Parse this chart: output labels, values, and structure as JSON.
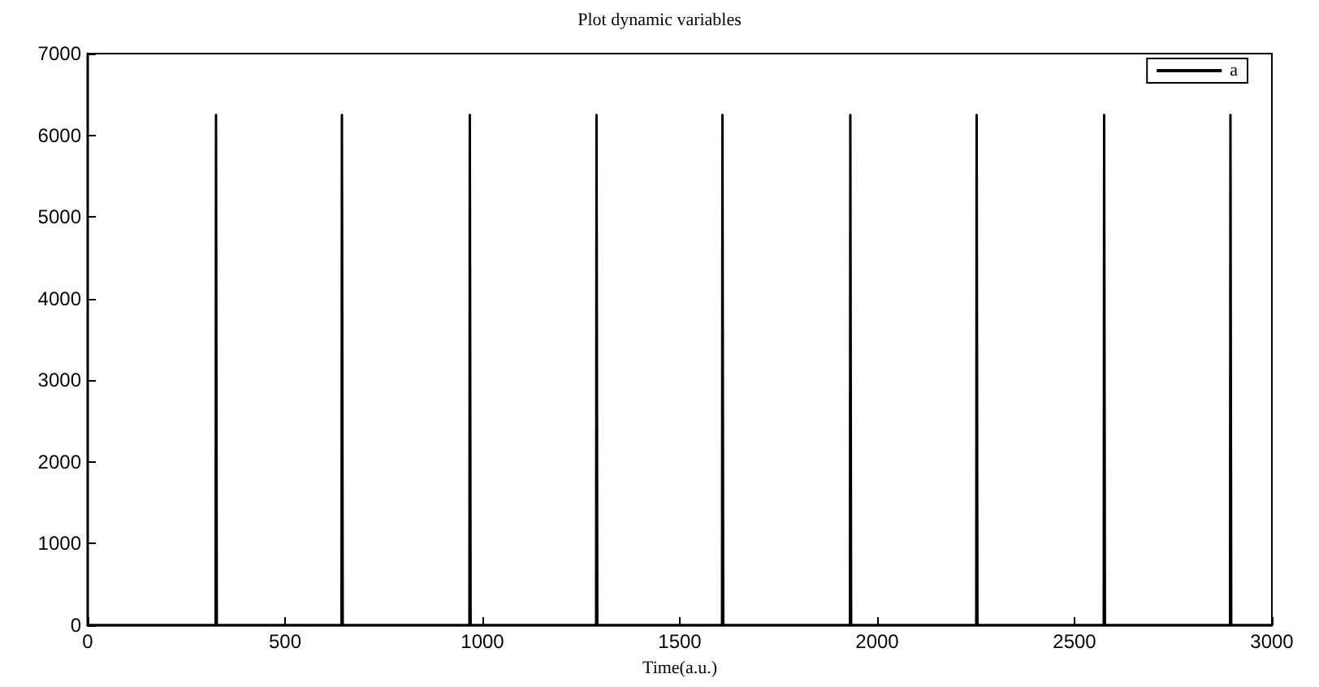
{
  "chart_data": {
    "type": "line",
    "title": "Plot dynamic variables",
    "xlabel": "Time(a.u.)",
    "series": [
      {
        "name": "a",
        "color": "#000000",
        "x": [
          0,
          324,
          325,
          327,
          643,
          644,
          646,
          967,
          968,
          970,
          1288,
          1289,
          1291,
          1607,
          1608,
          1610,
          1931,
          1932,
          1934,
          2251,
          2252,
          2254,
          2574,
          2575,
          2577,
          2894,
          2895,
          2897,
          3000
        ],
        "values": [
          0,
          0,
          6250,
          0,
          0,
          6250,
          0,
          0,
          6250,
          0,
          0,
          6250,
          0,
          0,
          6250,
          0,
          0,
          6250,
          0,
          0,
          6250,
          0,
          0,
          6250,
          0,
          0,
          6250,
          0,
          0
        ]
      }
    ],
    "xlim": [
      0,
      3000
    ],
    "xticks": [
      0,
      500,
      1000,
      1500,
      2000,
      2500,
      3000
    ],
    "ylim": [
      0,
      7000
    ],
    "yticks": [
      0,
      1000,
      2000,
      3000,
      4000,
      5000,
      6000,
      7000
    ],
    "grid": false,
    "legend": "top right",
    "marker": "none",
    "line_style": "solid"
  }
}
